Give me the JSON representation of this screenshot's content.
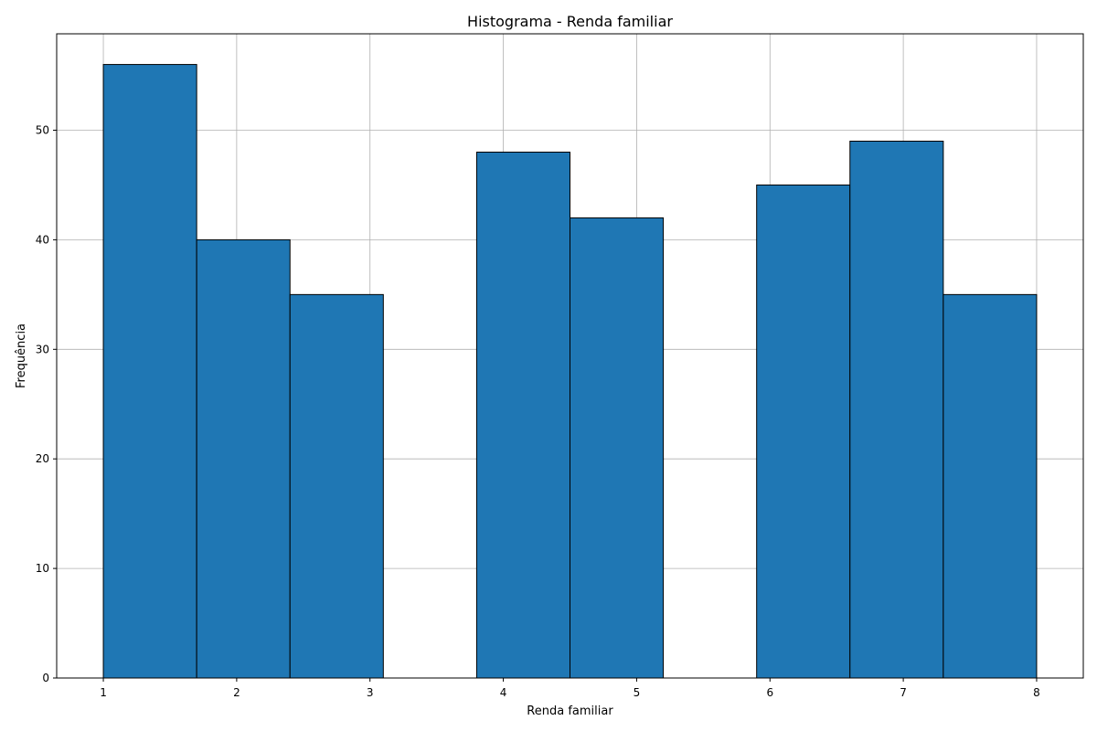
{
  "chart_data": {
    "type": "bar",
    "title": "Histograma - Renda familiar",
    "xlabel": "Renda familiar",
    "ylabel": "Frequência",
    "bin_edges": [
      1.0,
      1.7,
      2.4,
      3.1,
      3.8,
      4.5,
      5.2,
      5.9,
      6.6,
      7.3,
      8.0
    ],
    "values": [
      56,
      40,
      35,
      0,
      48,
      42,
      0,
      45,
      49,
      35
    ],
    "xlim": [
      0.65,
      8.35
    ],
    "ylim": [
      0,
      58.8
    ],
    "xticks": [
      "1",
      "2",
      "3",
      "4",
      "5",
      "6",
      "7",
      "8"
    ],
    "yticks": [
      "0",
      "10",
      "20",
      "30",
      "40",
      "50"
    ],
    "grid": true,
    "bar_color": "#1f77b4",
    "edge_color": "#000000"
  }
}
